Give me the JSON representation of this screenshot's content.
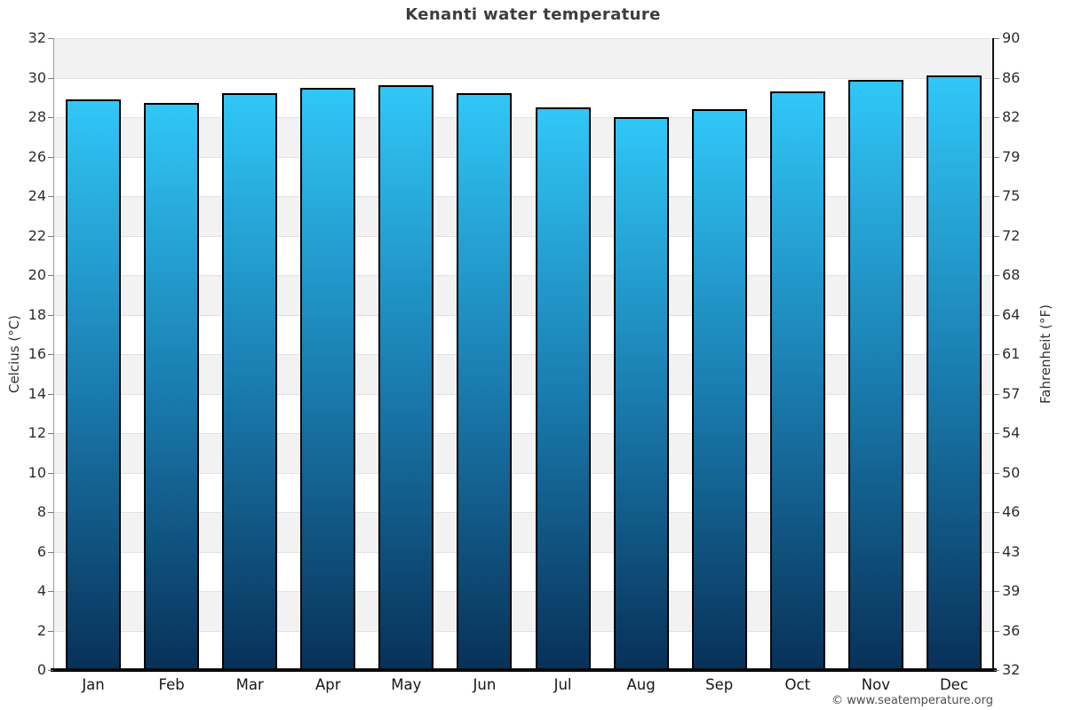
{
  "chart_data": {
    "type": "bar",
    "title": "Kenanti water temperature",
    "categories": [
      "Jan",
      "Feb",
      "Mar",
      "Apr",
      "May",
      "Jun",
      "Jul",
      "Aug",
      "Sep",
      "Oct",
      "Nov",
      "Dec"
    ],
    "values": [
      28.9,
      28.7,
      29.2,
      29.5,
      29.6,
      29.2,
      28.5,
      28.0,
      28.4,
      29.3,
      29.9,
      30.1
    ],
    "ylabel": "Celcius (°C)",
    "ylabel_right": "Fahrenheit (°F)",
    "ylim": [
      0,
      32
    ],
    "yticks": [
      0,
      2,
      4,
      6,
      8,
      10,
      12,
      14,
      16,
      18,
      20,
      22,
      24,
      26,
      28,
      30,
      32
    ],
    "yticks_right_labels": [
      "32",
      "36",
      "39",
      "43",
      "46",
      "50",
      "54",
      "57",
      "61",
      "64",
      "68",
      "72",
      "75",
      "79",
      "82",
      "86",
      "90"
    ],
    "grid": "horizontal-bands",
    "legend": "none",
    "bar_gradient_top": "#30c7f7",
    "bar_gradient_mid": "#1a7db0",
    "bar_gradient_bottom": "#083158",
    "band_color_dark": "#f2f2f2",
    "band_color_light": "#ffffff"
  },
  "footer": {
    "credit": "© www.seatemperature.org"
  }
}
